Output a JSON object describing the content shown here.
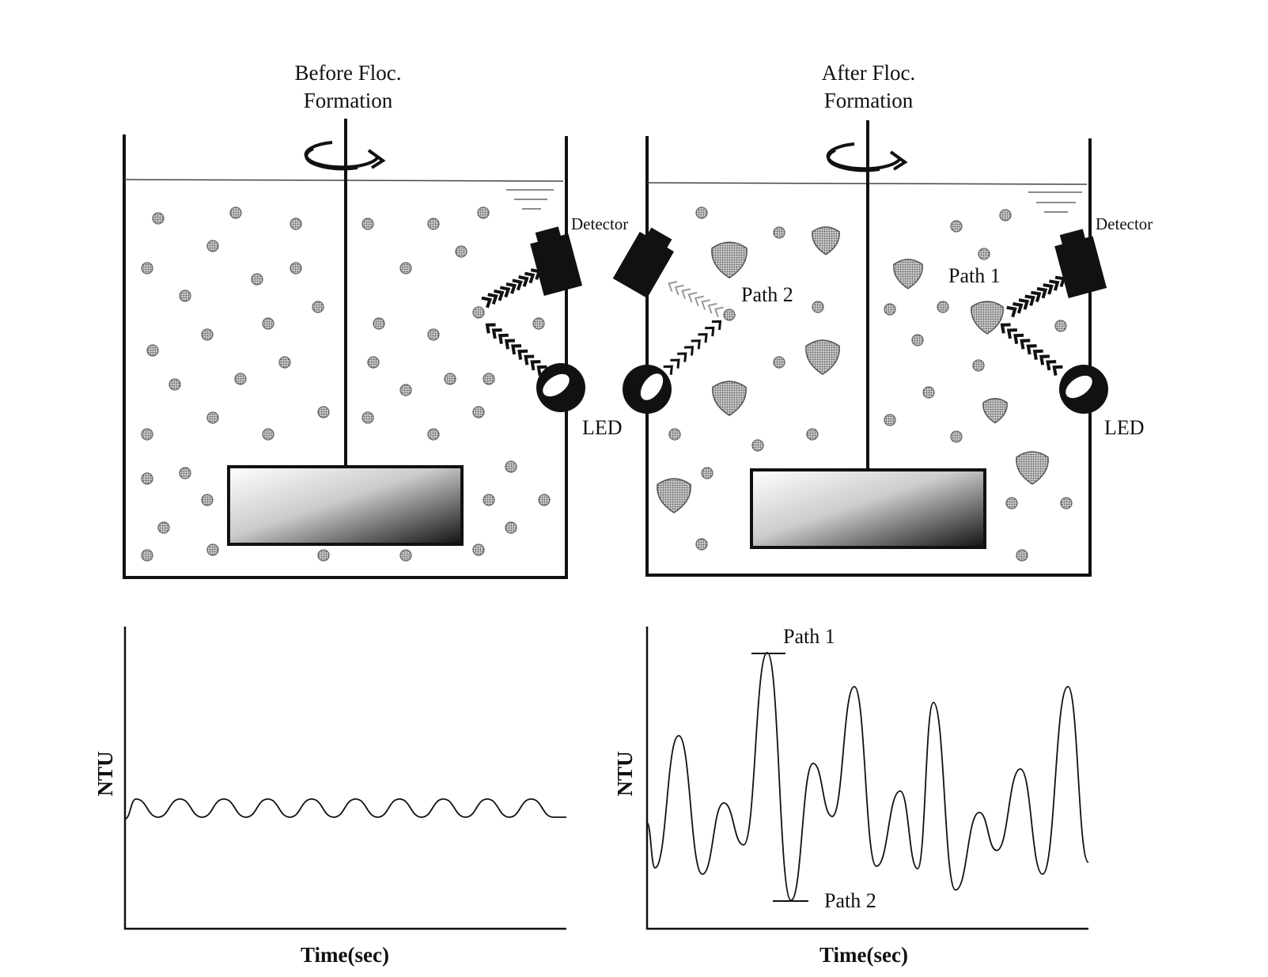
{
  "left_panel": {
    "title_line1": "Before  Floc.",
    "title_line2": "Formation",
    "detector_label": "Detector",
    "led_label": "LED",
    "chart": {
      "ylabel": "NTU",
      "xlabel": "Time(sec)"
    }
  },
  "right_panel": {
    "title_line1": "After  Floc.",
    "title_line2": "Formation",
    "detector_label": "Detector",
    "led_label": "LED",
    "path1_label": "Path 1",
    "path2_label": "Path 2",
    "chart": {
      "ylabel": "NTU",
      "xlabel": "Time(sec)",
      "path1_label": "Path 1",
      "path2_label": "Path 2"
    }
  },
  "colors": {
    "line": "#111111",
    "particle": "#8a8a8a",
    "floc": "#9a9a9a",
    "weak_light": "#9a9a9a"
  }
}
